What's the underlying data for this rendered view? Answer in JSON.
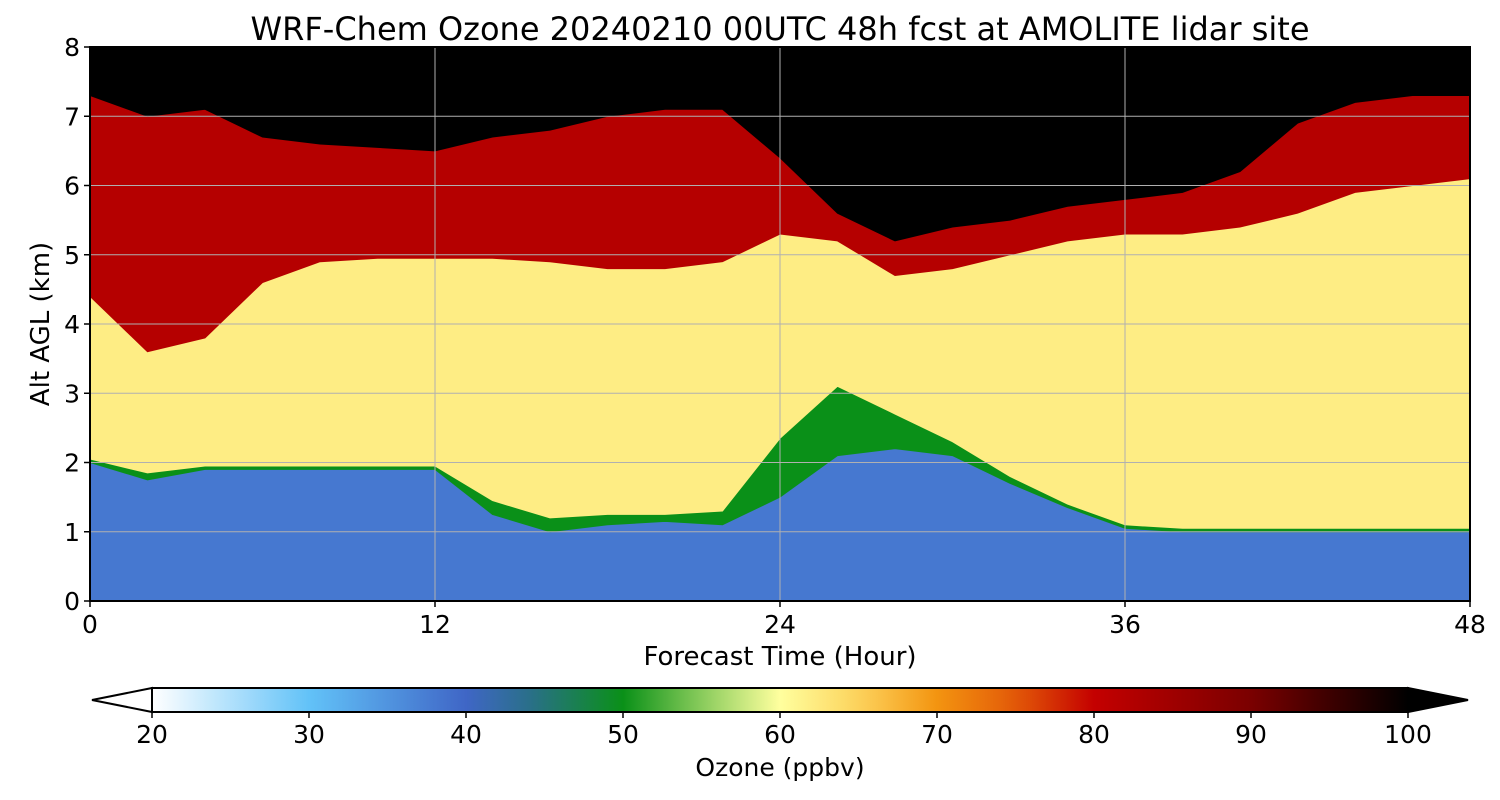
{
  "chart_data": {
    "type": "heatmap",
    "title": "WRF-Chem Ozone  20240210 00UTC 48h fcst at AMOLITE lidar site",
    "xlabel": "Forecast Time (Hour)",
    "ylabel": "Alt AGL (km)",
    "xlim": [
      0,
      48
    ],
    "ylim": [
      0,
      8
    ],
    "x_ticks": [
      0,
      12,
      24,
      36,
      48
    ],
    "y_ticks": [
      0,
      1,
      2,
      3,
      4,
      5,
      6,
      7,
      8
    ],
    "grid": true,
    "colorbar": {
      "label": "Ozone  (ppbv)",
      "range": [
        20,
        100
      ],
      "ticks": [
        20,
        30,
        40,
        50,
        60,
        70,
        80,
        90,
        100
      ],
      "extend": "both",
      "placement": "bottom",
      "colormap": [
        {
          "value": 20,
          "color": "#ffffff"
        },
        {
          "value": 30,
          "color": "#62c2f8"
        },
        {
          "value": 40,
          "color": "#3f66c6"
        },
        {
          "value": 44,
          "color": "#2a6f8a"
        },
        {
          "value": 50,
          "color": "#0a9018"
        },
        {
          "value": 55,
          "color": "#8acc5c"
        },
        {
          "value": 60,
          "color": "#ffff9e"
        },
        {
          "value": 65,
          "color": "#fdd35c"
        },
        {
          "value": 70,
          "color": "#f39410"
        },
        {
          "value": 75,
          "color": "#e35a08"
        },
        {
          "value": 80,
          "color": "#c40000"
        },
        {
          "value": 90,
          "color": "#7a0000"
        },
        {
          "value": 100,
          "color": "#000000"
        }
      ]
    },
    "boundaries": {
      "x": [
        0,
        2,
        4,
        6,
        8,
        10,
        12,
        14,
        16,
        18,
        20,
        22,
        24,
        26,
        28,
        30,
        32,
        34,
        36,
        38,
        40,
        42,
        44,
        46,
        48
      ],
      "b0": [
        2.0,
        1.75,
        1.9,
        1.9,
        1.9,
        1.9,
        1.9,
        1.25,
        1.0,
        1.1,
        1.15,
        1.1,
        1.5,
        2.1,
        2.2,
        2.1,
        1.7,
        1.35,
        1.05,
        1.0,
        1.0,
        1.0,
        1.0,
        1.0,
        1.0
      ],
      "b1": [
        2.05,
        1.85,
        1.95,
        1.95,
        1.95,
        1.95,
        1.95,
        1.45,
        1.2,
        1.25,
        1.25,
        1.3,
        2.35,
        3.1,
        2.7,
        2.3,
        1.8,
        1.4,
        1.1,
        1.05,
        1.05,
        1.05,
        1.05,
        1.05,
        1.05
      ],
      "b2": [
        4.4,
        3.6,
        3.8,
        4.6,
        4.9,
        4.95,
        4.95,
        4.95,
        4.9,
        4.8,
        4.8,
        4.9,
        5.3,
        5.2,
        4.7,
        4.8,
        5.0,
        5.2,
        5.3,
        5.3,
        5.4,
        5.6,
        5.9,
        6.0,
        6.1
      ],
      "b3": [
        7.3,
        7.0,
        7.1,
        6.7,
        6.6,
        6.55,
        6.5,
        6.7,
        6.8,
        7.0,
        7.1,
        7.1,
        6.4,
        5.6,
        5.2,
        5.4,
        5.5,
        5.7,
        5.8,
        5.9,
        6.2,
        6.9,
        7.2,
        7.3,
        7.3
      ]
    },
    "layers": [
      {
        "from": "bottom",
        "to": "b0",
        "ozone_ppbv": 38
      },
      {
        "from": "b0",
        "to": "b1",
        "ozone_ppbv": 50
      },
      {
        "from": "b1",
        "to": "b2",
        "ozone_ppbv": 62
      },
      {
        "from": "b2",
        "to": "b3",
        "ozone_ppbv": 82
      },
      {
        "from": "b3",
        "to": "top",
        "ozone_ppbv": 100
      }
    ]
  }
}
